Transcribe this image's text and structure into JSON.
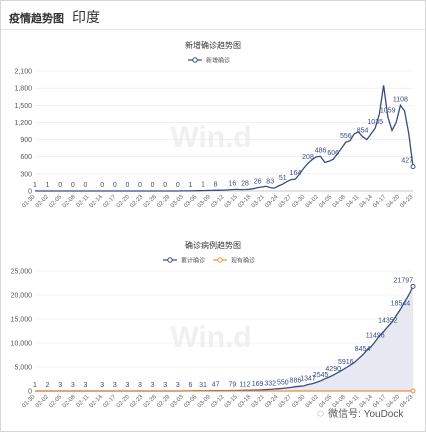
{
  "header": {
    "title_cn": "疫情趋势图",
    "country": "印度"
  },
  "watermarks": {
    "chart": "Win.d",
    "account": "微信号: YouDock"
  },
  "colors": {
    "series1": "#3a4a84",
    "series2": "#f08a3c",
    "grid": "#e8e8e8",
    "area": "#e6e9f2"
  },
  "chart_data": [
    {
      "type": "line",
      "title": "新增确诊趋势图",
      "legend": [
        "新增确诊"
      ],
      "legend_position": "top",
      "ylim": [
        0,
        2100
      ],
      "yticks": [
        0,
        300,
        600,
        900,
        1200,
        1500,
        1800,
        2100
      ],
      "ytick_labels": [
        "0",
        "300",
        "600",
        "900",
        "1,200",
        "1,500",
        "1,800",
        "2,100"
      ],
      "xtick_labels": [
        "01-30",
        "02-02",
        "02-05",
        "02-08",
        "02-11",
        "02-14",
        "02-17",
        "02-20",
        "02-23",
        "02-26",
        "02-29",
        "03-03",
        "03-06",
        "03-09",
        "03-12",
        "03-15",
        "03-18",
        "03-21",
        "03-24",
        "03-27",
        "03-30",
        "04-02",
        "04-05",
        "04-08",
        "04-11",
        "04-14",
        "04-17",
        "04-20",
        "04-23"
      ],
      "series": [
        {
          "name": "新增确诊",
          "values": [
            1,
            0,
            0,
            0,
            0,
            0,
            0,
            0,
            0,
            0,
            0,
            0,
            0,
            0,
            0,
            0,
            0,
            0,
            0,
            0,
            0,
            0,
            0,
            0,
            0,
            0,
            0,
            0,
            0,
            0,
            0,
            0,
            0,
            0,
            0,
            1,
            1,
            2,
            4,
            5,
            7,
            8,
            10,
            12,
            14,
            16,
            20,
            24,
            28,
            25,
            26,
            30,
            40,
            60,
            70,
            83,
            60,
            51,
            90,
            120,
            164,
            200,
            208,
            300,
            400,
            486,
            550,
            600,
            606,
            500,
            520,
            556,
            650,
            750,
            854,
            880,
            1000,
            1035,
            950,
            900,
            1000,
            1100,
            1350,
            1850,
            1300,
            1060,
            1200,
            1500,
            1400,
            1000,
            427
          ]
        }
      ],
      "data_labels": [
        "1",
        "1",
        "0",
        "0",
        "0",
        "0",
        "0",
        "0",
        "0",
        "0",
        "0",
        "0",
        "1",
        "1",
        "8",
        "16",
        "28",
        "26",
        "83",
        "51",
        "164",
        "208",
        "486",
        "606",
        "556",
        "854",
        "1035",
        "1059",
        "1108",
        "427"
      ]
    },
    {
      "type": "area",
      "title": "确诊病例趋势图",
      "legend": [
        "累计确诊",
        "现有确诊"
      ],
      "legend_position": "top",
      "ylim": [
        0,
        25000
      ],
      "yticks": [
        0,
        5000,
        10000,
        15000,
        20000,
        25000
      ],
      "ytick_labels": [
        "0",
        "5,000",
        "10,000",
        "15,000",
        "20,000",
        "25,000"
      ],
      "xtick_labels": [
        "01-30",
        "02-02",
        "02-05",
        "02-08",
        "02-11",
        "02-14",
        "02-17",
        "02-20",
        "02-23",
        "02-26",
        "02-29",
        "03-03",
        "03-06",
        "03-09",
        "03-12",
        "03-15",
        "03-18",
        "03-21",
        "03-24",
        "03-27",
        "03-30",
        "04-02",
        "04-05",
        "04-08",
        "04-11",
        "04-14",
        "04-17",
        "04-20",
        "04-23"
      ],
      "series": [
        {
          "name": "累计确诊",
          "values": [
            1,
            1,
            2,
            3,
            3,
            3,
            3,
            3,
            3,
            3,
            3,
            3,
            3,
            3,
            3,
            3,
            3,
            3,
            3,
            3,
            3,
            3,
            3,
            3,
            3,
            3,
            3,
            3,
            3,
            3,
            3,
            3,
            3,
            3,
            5,
            6,
            28,
            31,
            34,
            39,
            44,
            47,
            56,
            62,
            73,
            79,
            84,
            100,
            112,
            125,
            143,
            151,
            169,
            194,
            236,
            300,
            332,
            415,
            480,
            550,
            650,
            750,
            886,
            987,
            1071,
            1347,
            1500,
            1800,
            2100,
            2545,
            2900,
            3300,
            3800,
            4290,
            4800,
            5350,
            5916,
            6700,
            7500,
            8454,
            9200,
            10300,
            11496,
            12400,
            13400,
            14352,
            15700,
            17000,
            18544,
            20000,
            21797
          ]
        },
        {
          "name": "现有确诊",
          "values": [
            1,
            1,
            2,
            3,
            3,
            3,
            3,
            3,
            3,
            3,
            3,
            3,
            3,
            3,
            3,
            3,
            3,
            3,
            3,
            3,
            3,
            3,
            3,
            3,
            3,
            3,
            3,
            3,
            3,
            3,
            3,
            3,
            3,
            3,
            3,
            3,
            3,
            3,
            3,
            3,
            3,
            3,
            3,
            3,
            3,
            3,
            3,
            3,
            3,
            3,
            3,
            3,
            3,
            3,
            3,
            3,
            3,
            3,
            3,
            3,
            3,
            3,
            3,
            3,
            3,
            3,
            3,
            3,
            3,
            3,
            3,
            3,
            3,
            3,
            3,
            3,
            3,
            3,
            3,
            3,
            3,
            3,
            3,
            3,
            3,
            3,
            3,
            3,
            3,
            3,
            3
          ]
        }
      ],
      "data_labels": [
        "1",
        "2",
        "3",
        "3",
        "3",
        "3",
        "3",
        "3",
        "3",
        "3",
        "3",
        "3",
        "6",
        "31",
        "47",
        "79",
        "112",
        "169",
        "332",
        "550",
        "886",
        "1347",
        "2545",
        "4290",
        "5916",
        "8454",
        "11496",
        "14352",
        "18544",
        "21797"
      ]
    }
  ]
}
